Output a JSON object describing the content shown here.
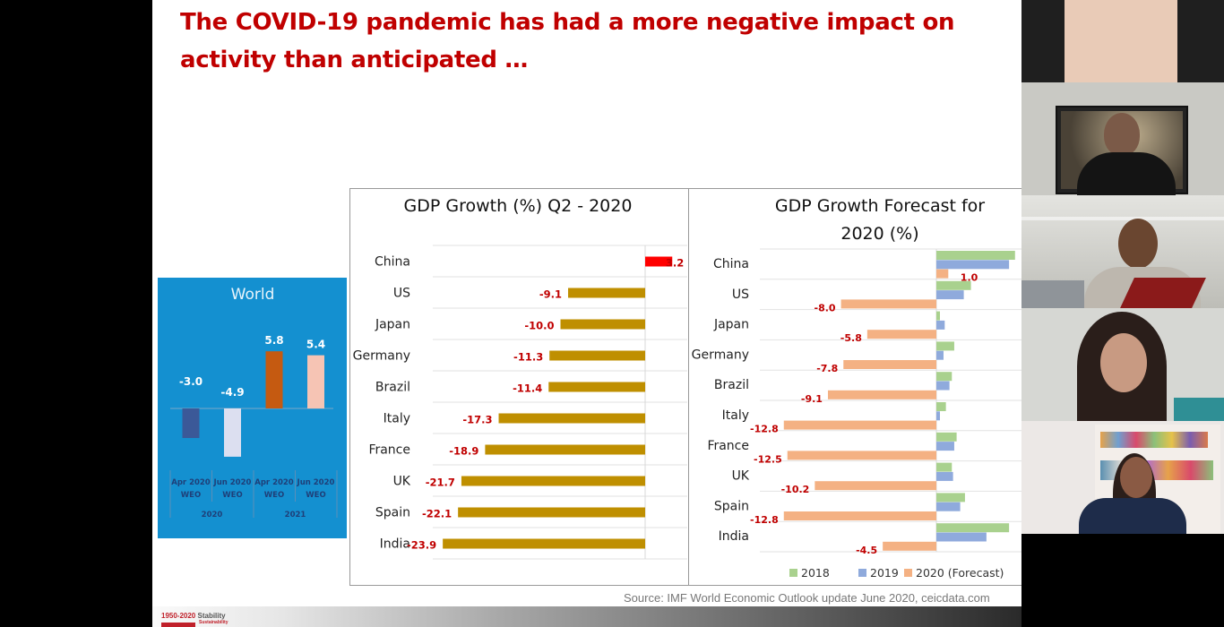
{
  "slide": {
    "title": "The COVID-19 pandemic has had a more negative impact on activity than anticipated …",
    "title_line1": "The COVID-19 pandemic has had a more negative impact on",
    "title_line2": "activity than anticipated …",
    "source": "Source: IMF World Economic Outlook  update June 2020, ceicdata.com",
    "footer_logo": {
      "years": "1950-2020",
      "word": "Stability",
      "sub": "Sustainability"
    },
    "title_color": "#c00000"
  },
  "chart_data": [
    {
      "type": "bar",
      "title": "World",
      "categories": [
        "Apr 2020 WEO",
        "Jun 2020 WEO",
        "Apr 2020 WEO",
        "Jun 2020 WEO"
      ],
      "category_lines": [
        [
          "Apr 2020",
          "WEO"
        ],
        [
          "Jun 2020",
          "WEO"
        ],
        [
          "Apr 2020",
          "WEO"
        ],
        [
          "Jun 2020",
          "WEO"
        ]
      ],
      "groups": [
        {
          "label": "2020",
          "span": [
            0,
            1
          ]
        },
        {
          "label": "2021",
          "span": [
            2,
            3
          ]
        }
      ],
      "values": [
        -3.0,
        -4.9,
        5.8,
        5.4
      ],
      "value_labels": [
        "-3.0",
        "-4.9",
        "5.8",
        "5.4"
      ],
      "colors": [
        "#3b5998",
        "#dcdff0",
        "#c55a11",
        "#f6c4b4"
      ],
      "ylim": [
        -6,
        7
      ],
      "background": "#1490d0"
    },
    {
      "type": "bar",
      "orientation": "horizontal",
      "title": "GDP Growth (%) Q2 - 2020",
      "categories": [
        "China",
        "US",
        "Japan",
        "Germany",
        "Brazil",
        "Italy",
        "France",
        "UK",
        "Spain",
        "India"
      ],
      "values": [
        3.2,
        -9.1,
        -10.0,
        -11.3,
        -11.4,
        -17.3,
        -18.9,
        -21.7,
        -22.1,
        -23.9
      ],
      "value_labels": [
        "3.2",
        "-9.1",
        "-10.0",
        "-11.3",
        "-11.4",
        "-17.3",
        "-18.9",
        "-21.7",
        "-22.1",
        "-23.9"
      ],
      "colors": {
        "positive": "#ff0000",
        "negative": "#bf8f00"
      },
      "label_color": "#c00000",
      "xlim": [
        -25,
        5
      ],
      "grid": true
    },
    {
      "type": "bar",
      "orientation": "horizontal",
      "title": "GDP Growth Forecast for 2020 (%)",
      "title_lines": [
        "GDP Growth Forecast for",
        "2020 (%)"
      ],
      "categories": [
        "China",
        "US",
        "Japan",
        "Germany",
        "Brazil",
        "Italy",
        "France",
        "UK",
        "Spain",
        "India"
      ],
      "series": [
        {
          "name": "2018",
          "color": "#a9d18e",
          "values": [
            6.6,
            2.9,
            0.3,
            1.5,
            1.3,
            0.8,
            1.7,
            1.3,
            2.4,
            6.1
          ]
        },
        {
          "name": "2019",
          "color": "#8faadc",
          "values": [
            6.1,
            2.3,
            0.7,
            0.6,
            1.1,
            0.3,
            1.5,
            1.4,
            2.0,
            4.2
          ]
        },
        {
          "name": "2020 (Forecast)",
          "color": "#f4b183",
          "values": [
            1.0,
            -8.0,
            -5.8,
            -7.8,
            -9.1,
            -12.8,
            -12.5,
            -10.2,
            -12.8,
            -4.5
          ]
        }
      ],
      "value_labels_series": "2020 (Forecast)",
      "value_labels": [
        "1.0",
        "-8.0",
        "-5.8",
        "-7.8",
        "-9.1",
        "-12.8",
        "-12.5",
        "-10.2",
        "-12.8",
        "-4.5"
      ],
      "label_color": "#c00000",
      "legend": "bottom",
      "xlim": [
        -13,
        7
      ],
      "grid": true
    }
  ],
  "participants": [
    {
      "tile": "presenter-shared",
      "bg": "#e9cbb7"
    },
    {
      "tile": "participant-1",
      "bg": "#b9b9b4"
    },
    {
      "tile": "participant-2",
      "bg": "#cfd0cc"
    },
    {
      "tile": "participant-3",
      "bg": "#dcdbd8"
    },
    {
      "tile": "participant-4",
      "bg": "#e8e4e2"
    }
  ]
}
